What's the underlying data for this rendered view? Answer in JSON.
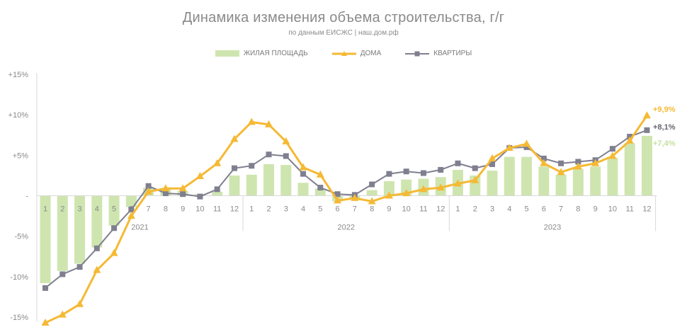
{
  "chart_data": {
    "type": "bar+line",
    "title": "Динамика изменения объема строительства, г/г",
    "subtitle": "по данным ЕИСЖС | наш.дом.рф",
    "ylim": [
      -15,
      15
    ],
    "y_ticks": [
      {
        "value": 15,
        "label": "+15%"
      },
      {
        "value": 10,
        "label": "+10%"
      },
      {
        "value": 5,
        "label": "+5%"
      },
      {
        "value": 0,
        "label": "-"
      },
      {
        "value": -5,
        "label": "-5%"
      },
      {
        "value": -10,
        "label": "-10%"
      },
      {
        "value": -15,
        "label": "-15%"
      }
    ],
    "categories": [
      "1",
      "2",
      "3",
      "4",
      "5",
      "6",
      "7",
      "8",
      "9",
      "10",
      "11",
      "12",
      "1",
      "2",
      "3",
      "4",
      "5",
      "6",
      "7",
      "8",
      "9",
      "10",
      "11",
      "12",
      "1",
      "2",
      "3",
      "4",
      "5",
      "6",
      "7",
      "8",
      "9",
      "10",
      "11",
      "12"
    ],
    "years": [
      {
        "label": "2021",
        "start": 0,
        "end": 11
      },
      {
        "label": "2022",
        "start": 12,
        "end": 23
      },
      {
        "label": "2023",
        "start": 24,
        "end": 35
      }
    ],
    "series": [
      {
        "name": "ЖИЛАЯ ПЛОЩАДЬ",
        "kind": "bar",
        "color": "#cfe5b0",
        "values": [
          -10.8,
          -9.3,
          -8.4,
          -6.4,
          -3.7,
          -1.4,
          1.0,
          0.8,
          0.6,
          0.2,
          0.5,
          2.5,
          2.6,
          3.9,
          3.8,
          1.6,
          0.9,
          -0.7,
          -0.4,
          0.7,
          1.8,
          2.0,
          2.1,
          2.3,
          3.2,
          2.5,
          3.1,
          4.8,
          4.8,
          3.6,
          2.6,
          3.3,
          3.6,
          4.7,
          6.5,
          7.4
        ],
        "end_label": "+7,4%"
      },
      {
        "name": "ДОМА",
        "kind": "line",
        "color": "#f5b934",
        "marker": "triangle",
        "values": [
          -15.7,
          -14.7,
          -13.4,
          -9.2,
          -7.1,
          -2.5,
          0.5,
          0.9,
          0.9,
          2.4,
          4.0,
          7.0,
          9.1,
          8.8,
          6.7,
          3.5,
          2.6,
          -0.6,
          -0.3,
          -0.7,
          0.0,
          0.3,
          0.8,
          1.0,
          1.5,
          1.9,
          4.6,
          5.9,
          6.4,
          4.0,
          2.9,
          3.6,
          4.0,
          4.9,
          6.8,
          9.9
        ],
        "end_label": "+9,9%"
      },
      {
        "name": "КВАРТИРЫ",
        "kind": "line",
        "color": "#7f7f8f",
        "marker": "square",
        "values": [
          -11.4,
          -9.7,
          -8.8,
          -6.5,
          -4.0,
          -1.7,
          1.2,
          0.3,
          0.2,
          -0.1,
          0.8,
          3.4,
          3.7,
          5.1,
          4.9,
          2.7,
          1.0,
          0.2,
          0.1,
          1.4,
          2.7,
          3.0,
          2.8,
          3.2,
          4.0,
          3.4,
          3.9,
          5.9,
          6.0,
          4.6,
          4.0,
          4.2,
          4.4,
          5.8,
          7.3,
          8.1
        ],
        "end_label": "+8,1%"
      }
    ],
    "legend_position": "top-center",
    "grid": false
  }
}
